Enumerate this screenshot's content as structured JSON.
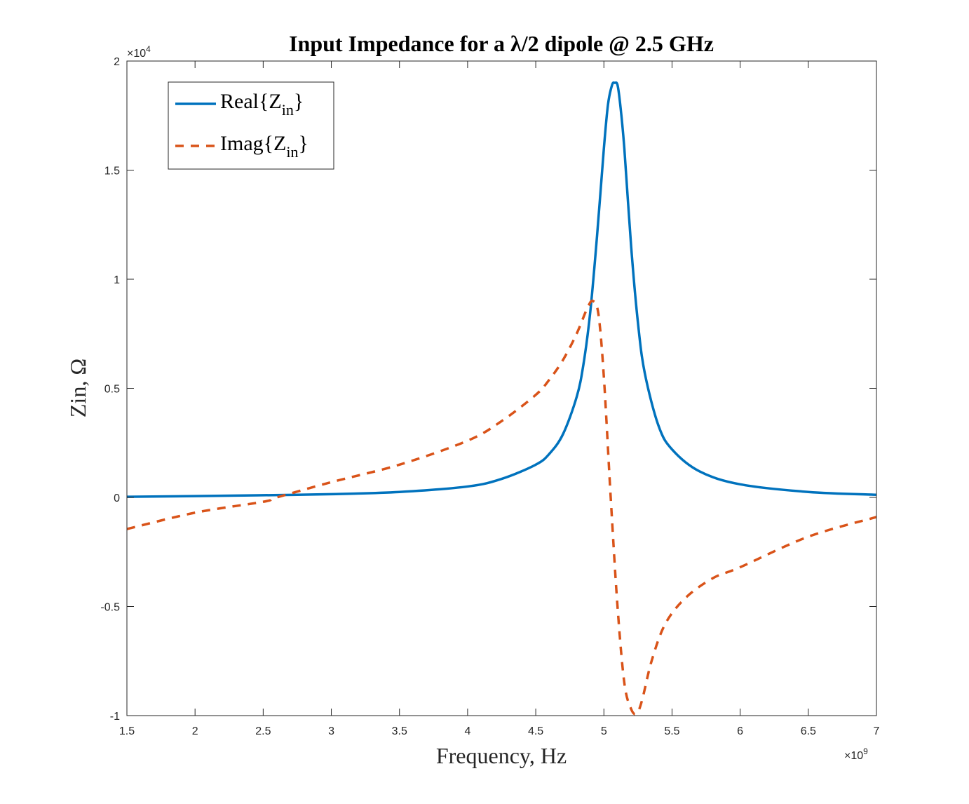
{
  "chart_data": {
    "type": "line",
    "title": "Input Impedance for a λ/2 dipole @ 2.5 GHz",
    "xlabel": "Frequency, Hz",
    "ylabel": "Zin, Ω",
    "xlim": [
      1500000000.0,
      7000000000.0
    ],
    "ylim": [
      -10000,
      20000
    ],
    "x_ticks": [
      1500000000.0,
      2000000000.0,
      2500000000.0,
      3000000000.0,
      3500000000.0,
      4000000000.0,
      4500000000.0,
      5000000000.0,
      5500000000.0,
      6000000000.0,
      6500000000.0,
      7000000000.0
    ],
    "x_tick_labels": [
      "1.5",
      "2",
      "2.5",
      "3",
      "3.5",
      "4",
      "4.5",
      "5",
      "5.5",
      "6",
      "6.5",
      "7"
    ],
    "x_exponent": "×10",
    "x_exponent_power": "9",
    "y_ticks": [
      -10000,
      -5000,
      0,
      5000,
      10000,
      15000,
      20000
    ],
    "y_tick_labels": [
      "-1",
      "-0.5",
      "0",
      "0.5",
      "1",
      "1.5",
      "2"
    ],
    "y_exponent": "×10",
    "y_exponent_power": "4",
    "grid": false,
    "legend_position": "top-left",
    "legend": {
      "real": {
        "base": "Real{Z",
        "sub": "in",
        "close": "}"
      },
      "imag": {
        "base": "Imag{Z",
        "sub": "in",
        "close": "}"
      }
    },
    "series": [
      {
        "name": "Real{Zin}",
        "color": "#0072BD",
        "style": "solid",
        "x": [
          1500000000.0,
          2000000000.0,
          2500000000.0,
          3000000000.0,
          3500000000.0,
          4000000000.0,
          4250000000.0,
          4500000000.0,
          4600000000.0,
          4700000000.0,
          4800000000.0,
          4850000000.0,
          4900000000.0,
          4950000000.0,
          5000000000.0,
          5030000000.0,
          5060000000.0,
          5080000000.0,
          5100000000.0,
          5120000000.0,
          5150000000.0,
          5200000000.0,
          5250000000.0,
          5300000000.0,
          5400000000.0,
          5500000000.0,
          5700000000.0,
          6000000000.0,
          6500000000.0,
          7000000000.0
        ],
        "y": [
          30,
          60,
          100,
          150,
          250,
          500,
          850,
          1500,
          2000,
          2900,
          4600,
          6100,
          8500,
          12000,
          16000,
          18000,
          18900,
          19000,
          18900,
          18000,
          16000,
          11500,
          8000,
          5700,
          3300,
          2200,
          1200,
          600,
          250,
          120
        ]
      },
      {
        "name": "Imag{Zin}",
        "color": "#D95319",
        "style": "dashed",
        "x": [
          1500000000.0,
          2000000000.0,
          2500000000.0,
          2600000000.0,
          3000000000.0,
          3500000000.0,
          4000000000.0,
          4250000000.0,
          4500000000.0,
          4600000000.0,
          4700000000.0,
          4800000000.0,
          4880000000.0,
          4920000000.0,
          4960000000.0,
          5000000000.0,
          5050000000.0,
          5100000000.0,
          5150000000.0,
          5200000000.0,
          5240000000.0,
          5280000000.0,
          5350000000.0,
          5450000000.0,
          5600000000.0,
          5800000000.0,
          6000000000.0,
          6500000000.0,
          7000000000.0
        ],
        "y": [
          -1450,
          -700,
          -200,
          0,
          700,
          1500,
          2600,
          3500,
          4700,
          5400,
          6300,
          7500,
          8700,
          9000,
          8400,
          5500,
          0,
          -5000,
          -8500,
          -9700,
          -9900,
          -9300,
          -7500,
          -5800,
          -4600,
          -3700,
          -3200,
          -1800,
          -900
        ]
      }
    ]
  }
}
